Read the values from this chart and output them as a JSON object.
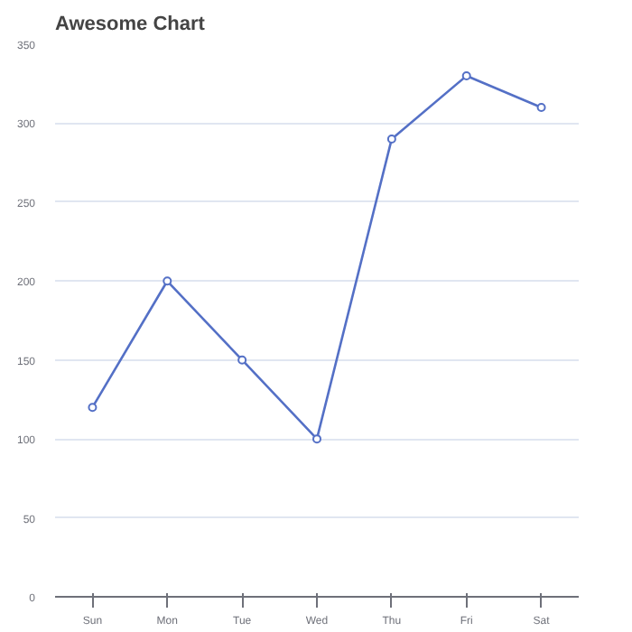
{
  "chart_data": {
    "type": "line",
    "title": "Awesome Chart",
    "categories": [
      "Sun",
      "Mon",
      "Tue",
      "Wed",
      "Thu",
      "Fri",
      "Sat"
    ],
    "series": [
      {
        "color": "#5470c6",
        "values": [
          120,
          200,
          150,
          100,
          290,
          330,
          310
        ]
      }
    ],
    "ylim": [
      0,
      350
    ],
    "yticks": [
      0,
      50,
      100,
      150,
      200,
      250,
      300,
      350
    ],
    "grid": "y",
    "marker": "circle"
  }
}
